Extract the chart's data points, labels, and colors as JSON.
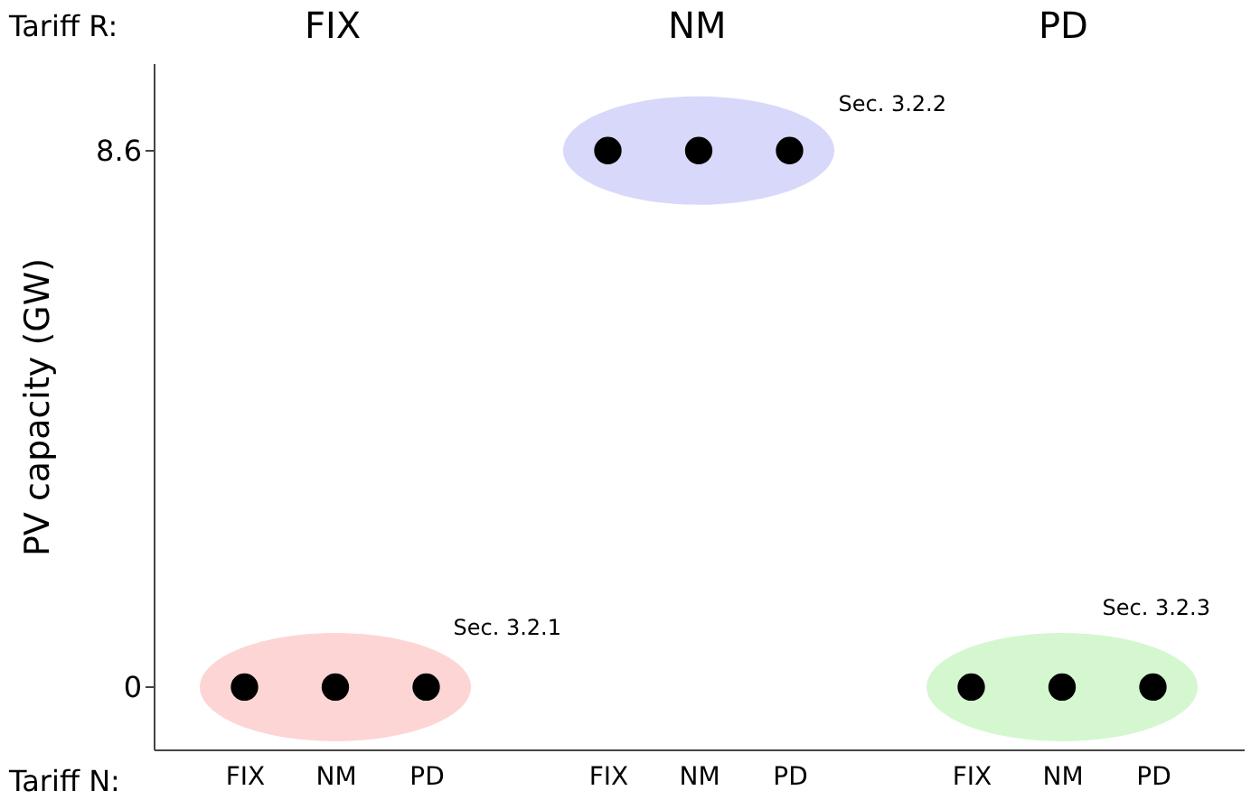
{
  "chart_data": {
    "type": "scatter",
    "ylabel": "PV capacity (GW)",
    "xlabel": "Tariff N:",
    "categories": [
      "FIX",
      "NM",
      "PD",
      null,
      "FIX",
      "NM",
      "PD",
      null,
      "FIX",
      "NM",
      "PD"
    ],
    "series": [
      {
        "color": "#000000",
        "values": [
          0,
          0,
          0,
          null,
          8.6,
          8.6,
          8.6,
          null,
          0,
          0,
          0
        ]
      }
    ],
    "ylim": [
      -1,
      10
    ],
    "yticks": [
      0,
      8.6
    ],
    "marker": "circle",
    "annotations": [
      "Tariff R:",
      "FIX",
      "NM",
      "PD",
      "Sec. 3.2.1",
      "Sec. 3.2.2",
      "Sec. 3.2.3"
    ]
  }
}
